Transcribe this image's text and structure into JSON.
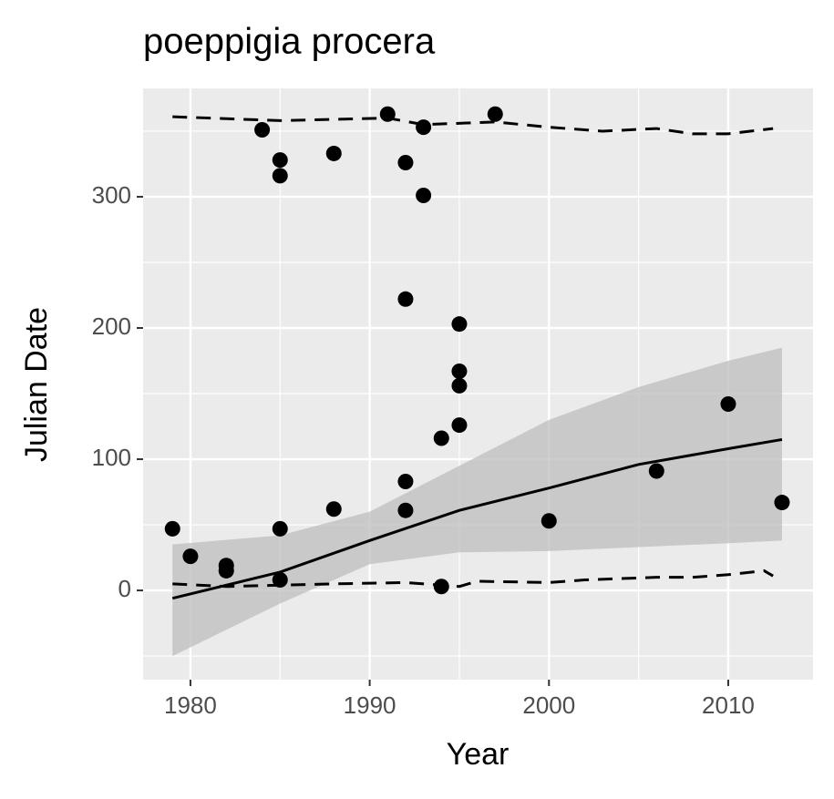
{
  "chart_data": {
    "type": "scatter",
    "title": "poeppigia procera",
    "x_label": "Year",
    "y_label": "Julian Date",
    "xlim": [
      1977.36,
      2014.73
    ],
    "ylim": [
      -68,
      382.6
    ],
    "xticks": [
      1980,
      1990,
      2000,
      2010
    ],
    "x_minor_ticks": [
      1985,
      1995,
      2005
    ],
    "yticks": [
      0,
      100,
      200,
      300
    ],
    "y_minor_ticks": [
      -50,
      50,
      150,
      250,
      350
    ],
    "grid": true,
    "point_color": "#000000",
    "panel_color": "#ebebeb",
    "ribbon_color": "#bdbdbd",
    "points": {
      "x": [
        1979,
        1980,
        1982,
        1982,
        1984,
        1985,
        1985,
        1985,
        1985,
        1988,
        1988,
        1991,
        1992,
        1992,
        1992,
        1992,
        1993,
        1993,
        1994,
        1994,
        1995,
        1995,
        1995,
        1995,
        1997,
        2000,
        2006,
        2010,
        2013
      ],
      "values": [
        47,
        26,
        19,
        15,
        351,
        328,
        316,
        47,
        8,
        333,
        62,
        363,
        326,
        222,
        83,
        61,
        353,
        301,
        116,
        3,
        203,
        167,
        156,
        126,
        363,
        53,
        91,
        142,
        67
      ]
    },
    "trend": {
      "x": [
        1979,
        1985,
        1990,
        1995,
        2000,
        2005,
        2010,
        2013
      ],
      "values": [
        -6,
        14,
        38,
        61,
        78,
        96,
        108,
        115
      ]
    },
    "ribbon": {
      "x": [
        1979,
        1985,
        1990,
        1995,
        2000,
        2005,
        2010,
        2013
      ],
      "lower": [
        -50,
        -10,
        20,
        29,
        30,
        33,
        36,
        38
      ],
      "upper": [
        35,
        42,
        60,
        95,
        130,
        155,
        175,
        185
      ]
    },
    "quantiles": [
      {
        "x": [
          1979,
          1985,
          1991,
          1993,
          1997,
          2000,
          2003,
          2006,
          2008,
          2010,
          2012.5
        ],
        "values": [
          361,
          358,
          360,
          355,
          357,
          353,
          350,
          352,
          348,
          348,
          352
        ]
      },
      {
        "x": [
          1979,
          1982,
          1988,
          1992,
          1995,
          1996,
          2000,
          2002,
          2006,
          2008,
          2010,
          2012,
          2012.5
        ],
        "values": [
          5,
          3,
          5,
          6,
          3,
          7,
          6,
          8,
          10,
          10,
          12,
          15,
          11
        ]
      }
    ]
  }
}
